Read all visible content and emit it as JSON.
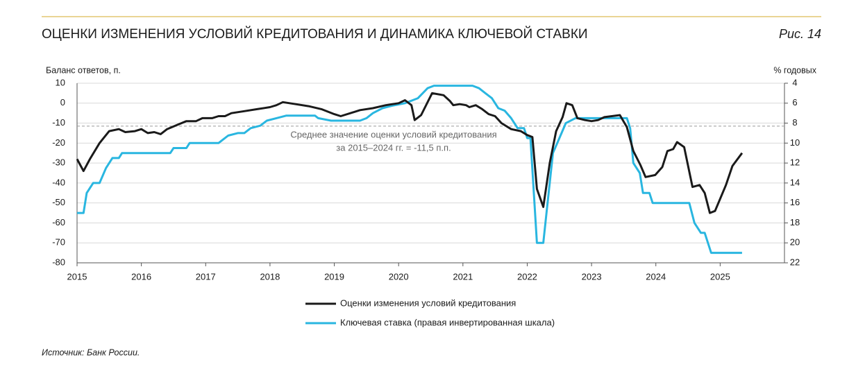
{
  "chart_data": {
    "type": "line",
    "title": "ОЦЕНКИ ИЗМЕНЕНИЯ УСЛОВИЙ КРЕДИТОВАНИЯ И ДИНАМИКА КЛЮЧЕВОЙ СТАВКИ",
    "figure_label": "Рис. 14",
    "y_label": "Баланс ответов, п.",
    "y2_label": "% годовых",
    "source": "Источник: Банк России.",
    "xlim": [
      2015,
      2026
    ],
    "xticks": [
      2015,
      2016,
      2017,
      2018,
      2019,
      2020,
      2021,
      2022,
      2023,
      2024,
      2025
    ],
    "ylim": [
      -80,
      10
    ],
    "yticks": [
      -80,
      -70,
      -60,
      -50,
      -40,
      -30,
      -20,
      -10,
      0,
      10
    ],
    "y2lim": [
      22,
      4
    ],
    "y2ticks": [
      4,
      6,
      8,
      10,
      12,
      14,
      16,
      18,
      20,
      22
    ],
    "grid": true,
    "reference_line": {
      "value": -11.5,
      "label": [
        "Среднее значение оценки условий кредитования",
        "за 2015–2024 гг. = -11,5 п.п."
      ]
    },
    "series": [
      {
        "name": "Оценки изменения условий кредитования",
        "color": "#1a1a1a",
        "x": [
          2015.0,
          2015.1,
          2015.2,
          2015.35,
          2015.5,
          2015.65,
          2015.75,
          2015.9,
          2016.0,
          2016.1,
          2016.2,
          2016.3,
          2016.4,
          2016.55,
          2016.7,
          2016.85,
          2016.95,
          2017.1,
          2017.2,
          2017.3,
          2017.4,
          2017.6,
          2017.8,
          2018.0,
          2018.1,
          2018.2,
          2018.4,
          2018.6,
          2018.8,
          2019.0,
          2019.1,
          2019.25,
          2019.4,
          2019.6,
          2019.8,
          2020.0,
          2020.1,
          2020.2,
          2020.25,
          2020.35,
          2020.52,
          2020.7,
          2020.8,
          2020.85,
          2020.95,
          2021.05,
          2021.1,
          2021.2,
          2021.3,
          2021.4,
          2021.5,
          2021.6,
          2021.75,
          2021.9,
          2022.0,
          2022.08,
          2022.15,
          2022.25,
          2022.35,
          2022.45,
          2022.55,
          2022.61,
          2022.7,
          2022.78,
          2022.9,
          2023.0,
          2023.1,
          2023.2,
          2023.44,
          2023.55,
          2023.65,
          2023.76,
          2023.84,
          2023.99,
          2024.1,
          2024.18,
          2024.27,
          2024.33,
          2024.44,
          2024.57,
          2024.68,
          2024.76,
          2024.84,
          2024.92,
          2025.09,
          2025.19,
          2025.34
        ],
        "values": [
          -28,
          -34,
          -28,
          -20,
          -14,
          -13,
          -14.5,
          -14,
          -13,
          -15,
          -14.5,
          -15.5,
          -13,
          -11,
          -9,
          -9,
          -7.5,
          -7.5,
          -6.5,
          -6.5,
          -5,
          -4,
          -3,
          -2,
          -1,
          0.5,
          -0.5,
          -1.5,
          -3,
          -5.5,
          -6.5,
          -5,
          -3.5,
          -2.5,
          -1,
          0,
          1.5,
          -1,
          -8.5,
          -6,
          5,
          4,
          1,
          -1,
          -0.5,
          -1,
          -2,
          -1,
          -3,
          -5.5,
          -6.5,
          -10,
          -13,
          -14,
          -16,
          -17,
          -43,
          -52,
          -30,
          -14,
          -7,
          0,
          -1,
          -7.5,
          -8.5,
          -9,
          -8.5,
          -7,
          -6,
          -12,
          -24,
          -31,
          -37,
          -36,
          -32,
          -24,
          -23,
          -19.5,
          -22,
          -42,
          -41,
          -45,
          -55,
          -54,
          -41,
          -31.5,
          -25
        ]
      },
      {
        "name": "Ключевая ставка (правая инвертированная шкала)",
        "color": "#29b6e0",
        "axis": "y2",
        "x": [
          2015.0,
          2015.1,
          2015.15,
          2015.25,
          2015.35,
          2015.45,
          2015.55,
          2015.65,
          2015.7,
          2016.45,
          2016.5,
          2016.7,
          2016.75,
          2017.2,
          2017.25,
          2017.35,
          2017.5,
          2017.6,
          2017.7,
          2017.85,
          2017.95,
          2018.1,
          2018.25,
          2018.7,
          2018.75,
          2018.95,
          2019.4,
          2019.5,
          2019.6,
          2019.75,
          2019.9,
          2020.1,
          2020.3,
          2020.45,
          2020.55,
          2021.15,
          2021.25,
          2021.35,
          2021.45,
          2021.55,
          2021.65,
          2021.75,
          2021.85,
          2021.95,
          2022.0,
          2022.05,
          2022.15,
          2022.25,
          2022.3,
          2022.4,
          2022.5,
          2022.6,
          2022.75,
          2023.55,
          2023.6,
          2023.65,
          2023.75,
          2023.8,
          2023.9,
          2023.95,
          2024.52,
          2024.6,
          2024.7,
          2024.76,
          2024.86,
          2025.34
        ],
        "values": [
          17,
          17,
          15,
          14,
          14,
          12.5,
          11.5,
          11.5,
          11,
          11,
          10.5,
          10.5,
          10,
          10,
          9.75,
          9.25,
          9,
          9,
          8.5,
          8.25,
          7.75,
          7.5,
          7.25,
          7.25,
          7.5,
          7.75,
          7.75,
          7.5,
          7,
          6.5,
          6.25,
          6,
          5.5,
          4.5,
          4.25,
          4.25,
          4.5,
          5,
          5.5,
          6.5,
          6.75,
          7.5,
          8.5,
          8.5,
          9.5,
          9.5,
          20,
          20,
          17,
          11,
          9.5,
          8,
          7.5,
          7.5,
          8.5,
          12,
          13,
          15,
          15,
          16,
          16,
          18,
          19,
          19,
          21,
          21
        ]
      }
    ]
  }
}
